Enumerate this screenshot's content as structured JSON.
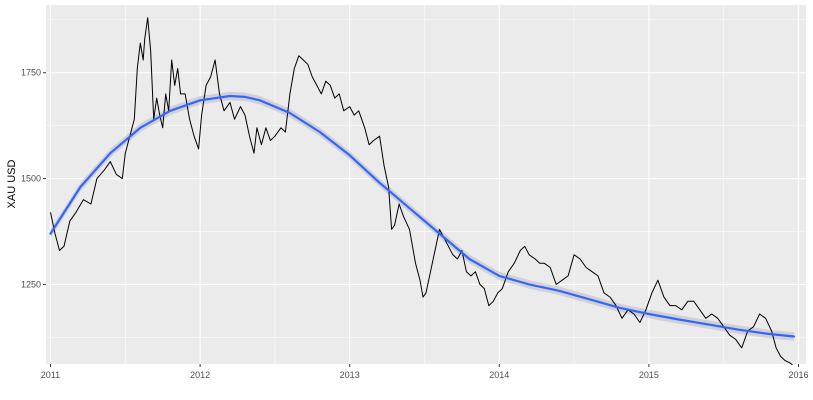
{
  "colors": {
    "panel_background": "#ebebeb",
    "grid_major": "#ffffff",
    "price_line": "#000000",
    "smooth_line": "#3366ff",
    "confidence_band": "#b9b9c4"
  },
  "chart_data": {
    "type": "line",
    "xlabel": "",
    "ylabel": "XAU USD",
    "xlim": [
      2010.97,
      2016.05
    ],
    "ylim": [
      1062,
      1910
    ],
    "x_ticks": [
      2011,
      2012,
      2013,
      2014,
      2015,
      2016
    ],
    "x_tick_labels": [
      "2011",
      "2012",
      "2013",
      "2014",
      "2015",
      "2016"
    ],
    "y_ticks": [
      1250,
      1500,
      1750
    ],
    "y_tick_labels": [
      "1250",
      "1500",
      "1750"
    ],
    "grid": true,
    "legend": "none",
    "series": [
      {
        "role": "price",
        "x": [
          2011.0,
          2011.03,
          2011.06,
          2011.09,
          2011.13,
          2011.17,
          2011.22,
          2011.27,
          2011.31,
          2011.36,
          2011.4,
          2011.44,
          2011.48,
          2011.5,
          2011.53,
          2011.56,
          2011.58,
          2011.6,
          2011.62,
          2011.63,
          2011.65,
          2011.67,
          2011.69,
          2011.71,
          2011.73,
          2011.75,
          2011.77,
          2011.79,
          2011.81,
          2011.83,
          2011.85,
          2011.87,
          2011.9,
          2011.93,
          2011.96,
          2011.99,
          2012.01,
          2012.04,
          2012.07,
          2012.1,
          2012.13,
          2012.16,
          2012.2,
          2012.23,
          2012.27,
          2012.3,
          2012.33,
          2012.36,
          2012.38,
          2012.41,
          2012.44,
          2012.47,
          2012.5,
          2012.54,
          2012.57,
          2012.6,
          2012.63,
          2012.66,
          2012.69,
          2012.72,
          2012.75,
          2012.78,
          2012.81,
          2012.84,
          2012.87,
          2012.9,
          2012.93,
          2012.96,
          2013.0,
          2013.03,
          2013.06,
          2013.1,
          2013.13,
          2013.16,
          2013.2,
          2013.23,
          2013.26,
          2013.28,
          2013.3,
          2013.33,
          2013.36,
          2013.4,
          2013.44,
          2013.47,
          2013.49,
          2013.51,
          2013.54,
          2013.57,
          2013.6,
          2013.63,
          2013.66,
          2013.69,
          2013.72,
          2013.75,
          2013.78,
          2013.81,
          2013.84,
          2013.87,
          2013.9,
          2013.93,
          2013.96,
          2013.99,
          2014.02,
          2014.06,
          2014.1,
          2014.14,
          2014.17,
          2014.2,
          2014.24,
          2014.27,
          2014.3,
          2014.34,
          2014.38,
          2014.42,
          2014.46,
          2014.5,
          2014.54,
          2014.58,
          2014.62,
          2014.66,
          2014.7,
          2014.74,
          2014.78,
          2014.82,
          2014.86,
          2014.9,
          2014.94,
          2014.98,
          2015.02,
          2015.06,
          2015.1,
          2015.14,
          2015.18,
          2015.22,
          2015.26,
          2015.3,
          2015.34,
          2015.38,
          2015.42,
          2015.46,
          2015.5,
          2015.54,
          2015.58,
          2015.62,
          2015.66,
          2015.7,
          2015.74,
          2015.78,
          2015.82,
          2015.85,
          2015.88,
          2015.91,
          2015.94,
          2015.96
        ],
        "y": [
          1420,
          1370,
          1330,
          1340,
          1400,
          1420,
          1450,
          1440,
          1500,
          1520,
          1540,
          1510,
          1500,
          1560,
          1600,
          1640,
          1760,
          1820,
          1780,
          1830,
          1880,
          1800,
          1640,
          1690,
          1650,
          1620,
          1700,
          1660,
          1780,
          1720,
          1760,
          1700,
          1700,
          1640,
          1600,
          1570,
          1650,
          1720,
          1740,
          1780,
          1700,
          1660,
          1680,
          1640,
          1670,
          1650,
          1600,
          1560,
          1620,
          1580,
          1620,
          1590,
          1600,
          1620,
          1610,
          1700,
          1760,
          1790,
          1780,
          1770,
          1740,
          1720,
          1700,
          1730,
          1720,
          1690,
          1700,
          1660,
          1670,
          1650,
          1660,
          1620,
          1580,
          1590,
          1600,
          1530,
          1480,
          1380,
          1390,
          1440,
          1410,
          1380,
          1300,
          1260,
          1220,
          1230,
          1280,
          1330,
          1380,
          1360,
          1340,
          1320,
          1310,
          1330,
          1280,
          1270,
          1280,
          1250,
          1240,
          1200,
          1210,
          1230,
          1240,
          1280,
          1300,
          1330,
          1340,
          1320,
          1310,
          1300,
          1300,
          1290,
          1250,
          1260,
          1270,
          1320,
          1310,
          1290,
          1280,
          1270,
          1230,
          1220,
          1200,
          1170,
          1190,
          1180,
          1160,
          1190,
          1230,
          1260,
          1220,
          1200,
          1200,
          1190,
          1210,
          1210,
          1190,
          1170,
          1180,
          1170,
          1150,
          1130,
          1120,
          1100,
          1140,
          1150,
          1180,
          1170,
          1140,
          1100,
          1080,
          1070,
          1065,
          1060
        ]
      },
      {
        "role": "smooth",
        "x": [
          2011.0,
          2011.2,
          2011.4,
          2011.6,
          2011.8,
          2012.0,
          2012.2,
          2012.3,
          2012.4,
          2012.6,
          2012.8,
          2013.0,
          2013.2,
          2013.4,
          2013.6,
          2013.8,
          2014.0,
          2014.2,
          2014.4,
          2014.6,
          2014.8,
          2015.0,
          2015.2,
          2015.4,
          2015.6,
          2015.8,
          2015.97
        ],
        "y": [
          1370,
          1480,
          1560,
          1620,
          1660,
          1685,
          1695,
          1693,
          1685,
          1655,
          1610,
          1555,
          1490,
          1430,
          1370,
          1310,
          1270,
          1250,
          1235,
          1215,
          1195,
          1180,
          1167,
          1155,
          1143,
          1133,
          1127
        ]
      }
    ]
  }
}
